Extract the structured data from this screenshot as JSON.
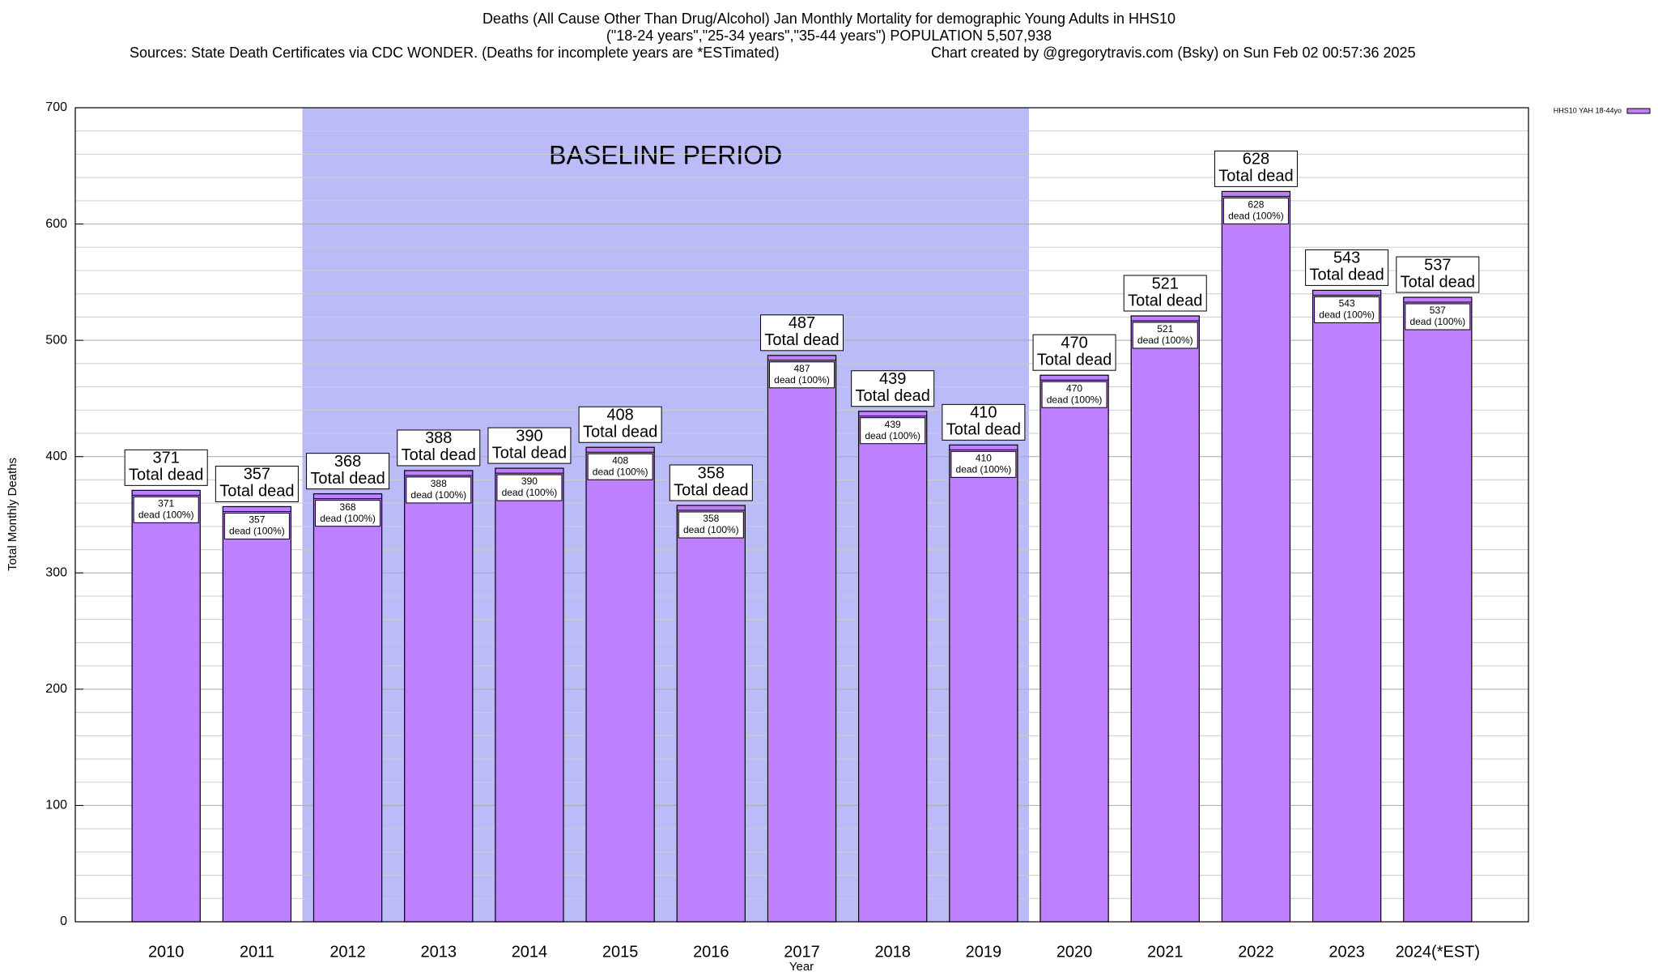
{
  "chart_data": {
    "type": "bar",
    "title": "Deaths (All Cause Other Than Drug/Alcohol) Jan Monthly Mortality for demographic Young Adults in HHS10",
    "subtitle": "(\"18-24 years\",\"25-34 years\",\"35-44 years\") POPULATION 5,507,938",
    "sources": "Sources: State Death Certificates via CDC WONDER. (Deaths for incomplete years are *ESTimated)",
    "credit": "Chart created by @gregorytravis.com (Bsky) on Sun Feb 02 00:57:36 2025",
    "x_label": "Year",
    "y_label": "Total Monthly Deaths",
    "categories": [
      "2010",
      "2011",
      "2012",
      "2013",
      "2014",
      "2015",
      "2016",
      "2017",
      "2018",
      "2019",
      "2020",
      "2021",
      "2022",
      "2023",
      "2024(*EST)"
    ],
    "series": [
      {
        "name": "HHS10 YAH 18-44yo",
        "color": "#bf80ff",
        "values": [
          371,
          357,
          368,
          388,
          390,
          408,
          358,
          487,
          439,
          410,
          470,
          521,
          628,
          543,
          537
        ]
      }
    ],
    "total_label": "Total dead",
    "inner_label": "dead (100%)",
    "baseline": {
      "label": "BASELINE PERIOD",
      "start": "2012",
      "end": "2019",
      "color": "#bbbbf8"
    },
    "ylim": [
      0,
      700
    ],
    "yticks": [
      0,
      100,
      200,
      300,
      400,
      500,
      600,
      700
    ],
    "grid": true,
    "legend": "top-right"
  }
}
